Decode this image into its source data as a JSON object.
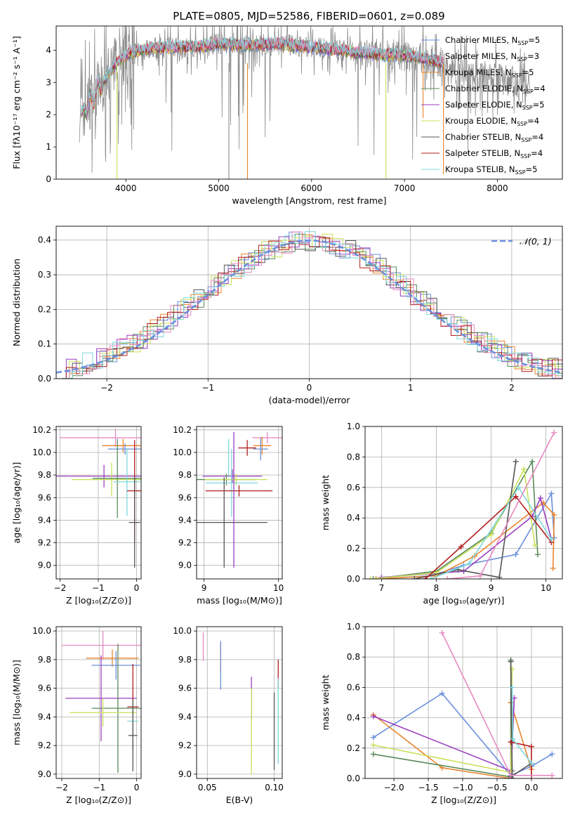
{
  "figure_title": "PLATE=0805, MJD=52586, FIBERID=0601, z=0.089",
  "colors": {
    "chabrier_miles": "#6a8fdc",
    "salpeter_miles": "#8c8c8c",
    "kroupa_miles": "#e8852e",
    "chabrier_elodie": "#5a8a5a",
    "salpeter_elodie": "#9b3fbf",
    "kroupa_elodie": "#c9e05a",
    "chabrier_stelib": "#555555",
    "salpeter_stelib": "#b01d1d",
    "kroupa_stelib": "#7fd8dc",
    "pink": "#e78ac3",
    "grid": "#b0b0b0"
  },
  "chart_data": [
    {
      "id": "spectrum",
      "type": "line",
      "xlabel": "wavelength [Angstrom, rest frame]",
      "ylabel": "Flux [fλ10⁻¹⁷ erg cm⁻² s⁻¹ A⁻¹]",
      "xlim": [
        3250,
        8700
      ],
      "ylim": [
        0,
        4.75
      ],
      "xticks": [
        4000,
        5000,
        6000,
        7000,
        8000
      ],
      "yticks": [
        0,
        1,
        2,
        3,
        4
      ],
      "grid": false,
      "legend_position": "top-right",
      "legend": [
        {
          "label": "Chabrier MILES, N_SSP=5",
          "text": "Chabrier MILES, N",
          "sub": "SSP",
          "tail": "=5",
          "color": "#6a8fdc"
        },
        {
          "label": "Salpeter MILES, N_SSP=3",
          "text": "Salpeter MILES, N",
          "sub": "SSP",
          "tail": "=3",
          "color": "#8c8c8c"
        },
        {
          "label": "Kroupa MILES, N_SSP=5",
          "text": "Kroupa MILES, N",
          "sub": "SSP",
          "tail": "=5",
          "color": "#e8852e"
        },
        {
          "label": "Chabrier ELODIE, N_SSP=4",
          "text": "Chabrier ELODIE, N",
          "sub": "SSP",
          "tail": "=4",
          "color": "#5a8a5a"
        },
        {
          "label": "Salpeter ELODIE, N_SSP=5",
          "text": "Salpeter ELODIE, N",
          "sub": "SSP",
          "tail": "=5",
          "color": "#9b3fbf"
        },
        {
          "label": "Kroupa ELODIE, N_SSP=4",
          "text": "Kroupa ELODIE, N",
          "sub": "SSP",
          "tail": "=4",
          "color": "#c9e05a"
        },
        {
          "label": "Chabrier STELIB, N_SSP=4",
          "text": "Chabrier STELIB, N",
          "sub": "SSP",
          "tail": "=4",
          "color": "#555555"
        },
        {
          "label": "Salpeter STELIB, N_SSP=4",
          "text": "Salpeter STELIB, N",
          "sub": "SSP",
          "tail": "=4",
          "color": "#b01d1d"
        },
        {
          "label": "Kroupa STELIB, N_SSP=5",
          "text": "Kroupa STELIB, N",
          "sub": "SSP",
          "tail": "=5",
          "color": "#7fd8dc"
        }
      ],
      "continuum_x": [
        3500,
        3600,
        3700,
        3800,
        3900,
        4000,
        4200,
        4500,
        4800,
        5000,
        5300,
        5600,
        6000,
        6300,
        6600,
        6900,
        7100,
        7300,
        7420
      ],
      "continuum_y": [
        2.1,
        2.3,
        2.8,
        3.2,
        3.6,
        3.85,
        4.05,
        4.1,
        4.1,
        4.2,
        4.15,
        4.2,
        4.1,
        4.0,
        3.9,
        3.85,
        3.8,
        3.7,
        3.6
      ],
      "data_drops": [
        {
          "x": 3905,
          "y": 0.0,
          "color": "#c9e05a"
        },
        {
          "x": 5110,
          "y": 0.0,
          "color": "#8c8c8c"
        },
        {
          "x": 5310,
          "y": 0.0,
          "color": "#e8852e"
        },
        {
          "x": 6800,
          "y": 0.0,
          "color": "#c9e05a"
        },
        {
          "x": 7200,
          "y": 1.9,
          "color": "#e8852e"
        },
        {
          "x": 7420,
          "y": 0.15,
          "color": "#e8852e"
        }
      ]
    },
    {
      "id": "residual_hist",
      "type": "line",
      "xlabel": "(data-model)/error",
      "ylabel": "Normed distribution",
      "xlim": [
        -2.5,
        2.5
      ],
      "ylim": [
        0,
        0.44
      ],
      "xticks": [
        -2,
        -1,
        0,
        1,
        2
      ],
      "yticks": [
        0.0,
        0.1,
        0.2,
        0.3,
        0.4
      ],
      "grid": true,
      "legend_position": "top-right",
      "normal_label": "𝒩(0, 1)",
      "bin_width": 0.1
    },
    {
      "id": "age_vs_Z",
      "type": "scatter",
      "xlabel": "Z [log₁₀(Z/Z⊙)]",
      "ylabel": "age  [log₁₀(age/yr)]",
      "xlim": [
        -2.1,
        0.12
      ],
      "ylim": [
        8.88,
        10.23
      ],
      "xticks": [
        -2,
        -1,
        0
      ],
      "yticks": [
        9.0,
        9.2,
        9.4,
        9.6,
        9.8,
        10.0,
        10.2
      ],
      "grid": true,
      "points": [
        {
          "x": -0.55,
          "xerr": 1.45,
          "y": 10.13,
          "yerr": 0.08,
          "color": "#e78ac3"
        },
        {
          "x": -0.35,
          "xerr": 0.55,
          "y": 10.06,
          "yerr": 0.06,
          "color": "#e8852e"
        },
        {
          "x": -0.3,
          "xerr": 0.45,
          "y": 10.03,
          "yerr": 0.05,
          "color": "#6a8fdc"
        },
        {
          "x": -0.85,
          "xerr": 1.35,
          "y": 9.79,
          "yerr": 0.1,
          "color": "#9b3fbf"
        },
        {
          "x": -0.65,
          "xerr": 1.05,
          "y": 9.76,
          "yerr": 0.15,
          "color": "#c9e05a"
        },
        {
          "x": -0.5,
          "xerr": 0.65,
          "y": 9.77,
          "yerr": 0.35,
          "color": "#5a8a5a"
        },
        {
          "x": -0.25,
          "xerr": 0.35,
          "y": 9.74,
          "yerr": 0.3,
          "color": "#7fd8dc"
        },
        {
          "x": -0.05,
          "xerr": 0.2,
          "y": 9.66,
          "yerr": 0.45,
          "color": "#b01d1d"
        },
        {
          "x": -0.05,
          "xerr": 0.15,
          "y": 9.38,
          "yerr": 0.4,
          "color": "#555555"
        }
      ]
    },
    {
      "id": "age_vs_mass",
      "type": "scatter",
      "xlabel": "mass [log₁₀(M/M⊙)]",
      "ylabel": "",
      "xlim": [
        8.9,
        10.05
      ],
      "ylim": [
        8.88,
        10.23
      ],
      "xticks": [
        9,
        10
      ],
      "yticks": [
        9.0,
        9.2,
        9.4,
        9.6,
        9.8,
        10.0,
        10.2
      ],
      "grid": true,
      "points": [
        {
          "x": 9.85,
          "xerr": 0.2,
          "y": 10.13,
          "yerr": 0.05,
          "color": "#e78ac3"
        },
        {
          "x": 9.78,
          "xerr": 0.12,
          "y": 10.06,
          "yerr": 0.08,
          "color": "#e8852e"
        },
        {
          "x": 9.76,
          "xerr": 0.1,
          "y": 10.03,
          "yerr": 0.1,
          "color": "#6a8fdc"
        },
        {
          "x": 9.58,
          "xerr": 0.12,
          "y": 10.04,
          "yerr": 0.07,
          "color": "#b01d1d"
        },
        {
          "x": 9.38,
          "xerr": 0.4,
          "y": 9.79,
          "yerr": 0.06,
          "color": "#9b3fbf"
        },
        {
          "x": 9.3,
          "xerr": 0.4,
          "y": 9.76,
          "yerr": 0.05,
          "color": "#5a8a5a"
        },
        {
          "x": 9.43,
          "xerr": 0.42,
          "y": 9.76,
          "yerr": 0.05,
          "color": "#c9e05a"
        },
        {
          "x": 9.37,
          "xerr": 0.35,
          "y": 9.73,
          "yerr": 0.3,
          "color": "#7fd8dc"
        },
        {
          "x": 9.47,
          "xerr": 0.45,
          "y": 9.66,
          "yerr": 0.05,
          "color": "#b01d1d"
        },
        {
          "x": 9.27,
          "xerr": 0.58,
          "y": 9.38,
          "yerr": 0.4,
          "color": "#555555"
        },
        {
          "x": 9.4,
          "xerr": 0.0,
          "y": 9.58,
          "yerr": 0.6,
          "color": "#9b3fbf"
        },
        {
          "x": 9.33,
          "xerr": 0.0,
          "y": 9.95,
          "yerr": 0.17,
          "color": "#7fd8dc"
        }
      ]
    },
    {
      "id": "mass_weight_vs_age",
      "type": "line",
      "xlabel": "age  [log₁₀(age/yr)]",
      "ylabel": "mass weight",
      "xlim": [
        6.7,
        10.3
      ],
      "ylim": [
        0,
        1.0
      ],
      "xticks": [
        7,
        8,
        9,
        10
      ],
      "yticks": [
        0.0,
        0.2,
        0.4,
        0.6,
        0.8,
        1.0
      ],
      "grid": true,
      "series": [
        {
          "color": "#6a8fdc",
          "x": [
            6.9,
            7.9,
            8.5,
            9.45,
            10.1,
            10.15
          ],
          "y": [
            0.0,
            0.02,
            0.09,
            0.16,
            0.56,
            0.27
          ]
        },
        {
          "color": "#e8852e",
          "x": [
            6.9,
            8.0,
            8.7,
            9.95,
            10.15,
            10.13
          ],
          "y": [
            0.0,
            0.02,
            0.15,
            0.5,
            0.42,
            0.07
          ]
        },
        {
          "color": "#5a8a5a",
          "x": [
            6.85,
            8.0,
            9.0,
            9.75,
            9.85
          ],
          "y": [
            0.0,
            0.05,
            0.3,
            0.77,
            0.16
          ]
        },
        {
          "color": "#9b3fbf",
          "x": [
            7.0,
            8.5,
            9.75,
            9.9,
            10.1
          ],
          "y": [
            0.01,
            0.05,
            0.41,
            0.53,
            0.26
          ]
        },
        {
          "color": "#c9e05a",
          "x": [
            6.8,
            8.0,
            9.0,
            9.6,
            9.8
          ],
          "y": [
            0.0,
            0.04,
            0.29,
            0.72,
            0.22
          ]
        },
        {
          "color": "#555555",
          "x": [
            7.6,
            8.4,
            9.15,
            9.45
          ],
          "y": [
            0.0,
            0.06,
            0.01,
            0.77
          ]
        },
        {
          "color": "#b01d1d",
          "x": [
            7.8,
            8.45,
            9.45,
            10.1
          ],
          "y": [
            0.0,
            0.21,
            0.54,
            0.24
          ]
        },
        {
          "color": "#7fd8dc",
          "x": [
            7.9,
            8.6,
            9.5,
            10.1
          ],
          "y": [
            0.0,
            0.1,
            0.6,
            0.26
          ]
        },
        {
          "color": "#e78ac3",
          "x": [
            8.2,
            8.8,
            10.15
          ],
          "y": [
            0.0,
            0.02,
            0.96
          ]
        }
      ]
    },
    {
      "id": "mass_vs_Z",
      "type": "scatter",
      "xlabel": "Z [log₁₀(Z/Z⊙)]",
      "ylabel": "mass [log₁₀(M/M⊙)]",
      "xlim": [
        -2.15,
        0.12
      ],
      "ylim": [
        8.97,
        10.03
      ],
      "xticks": [
        -2,
        -1,
        0
      ],
      "yticks": [
        9.0,
        9.2,
        9.4,
        9.6,
        9.8,
        10.0
      ],
      "grid": true,
      "points": [
        {
          "x": -0.9,
          "xerr": 1.1,
          "y": 9.9,
          "yerr": 0.1,
          "color": "#e78ac3"
        },
        {
          "x": -0.65,
          "xerr": 0.7,
          "y": 9.81,
          "yerr": 0.06,
          "color": "#e8852e"
        },
        {
          "x": -0.55,
          "xerr": 0.65,
          "y": 9.76,
          "yerr": 0.1,
          "color": "#6a8fdc"
        },
        {
          "x": -0.95,
          "xerr": 0.95,
          "y": 9.53,
          "yerr": 0.3,
          "color": "#9b3fbf"
        },
        {
          "x": -0.5,
          "xerr": 0.7,
          "y": 9.46,
          "yerr": 0.45,
          "color": "#5a8a5a"
        },
        {
          "x": -0.9,
          "xerr": 0.9,
          "y": 9.43,
          "yerr": 0.1,
          "color": "#c9e05a"
        },
        {
          "x": -0.1,
          "xerr": 0.15,
          "y": 9.47,
          "yerr": 0.3,
          "color": "#b01d1d"
        },
        {
          "x": -0.1,
          "xerr": 0.15,
          "y": 9.37,
          "yerr": 0.15,
          "color": "#7fd8dc"
        },
        {
          "x": -0.1,
          "xerr": 0.12,
          "y": 9.27,
          "yerr": 0.25,
          "color": "#555555"
        }
      ]
    },
    {
      "id": "mass_vs_EBV",
      "type": "scatter",
      "xlabel": "E(B-V)",
      "ylabel": "",
      "xlim": [
        0.042,
        0.106
      ],
      "ylim": [
        8.97,
        10.03
      ],
      "xticks": [
        0.05,
        0.1
      ],
      "yticks": [
        9.0,
        9.2,
        9.4,
        9.6,
        9.8,
        10.0
      ],
      "grid": true,
      "points": [
        {
          "x": 0.047,
          "xerr": 0.0,
          "y": 9.89,
          "yerr": 0.1,
          "color": "#e78ac3"
        },
        {
          "x": 0.06,
          "xerr": 0.0,
          "y": 9.81,
          "yerr": 0.1,
          "color": "#e8852e"
        },
        {
          "x": 0.06,
          "xerr": 0.0,
          "y": 9.76,
          "yerr": 0.17,
          "color": "#6a8fdc"
        },
        {
          "x": 0.083,
          "xerr": 0.0,
          "y": 9.53,
          "yerr": 0.15,
          "color": "#9b3fbf"
        },
        {
          "x": 0.083,
          "xerr": 0.0,
          "y": 9.3,
          "yerr": 0.3,
          "color": "#c9e05a"
        },
        {
          "x": 0.1,
          "xerr": 0.0,
          "y": 9.3,
          "yerr": 0.27,
          "color": "#555555"
        },
        {
          "x": 0.103,
          "xerr": 0.0,
          "y": 9.7,
          "yerr": 0.1,
          "color": "#b01d1d"
        },
        {
          "x": 0.103,
          "xerr": 0.0,
          "y": 9.37,
          "yerr": 0.3,
          "color": "#7fd8dc"
        }
      ]
    },
    {
      "id": "mass_weight_vs_Z",
      "type": "line",
      "xlabel": "Z [log₁₀(Z/Z⊙)]",
      "ylabel": "mass weight",
      "xlim": [
        -2.42,
        0.45
      ],
      "ylim": [
        0,
        1.0
      ],
      "xticks": [
        -2.0,
        -1.5,
        -1.0,
        -0.5,
        0.0
      ],
      "yticks": [
        0.0,
        0.2,
        0.4,
        0.6,
        0.8,
        1.0
      ],
      "grid": true,
      "series": [
        {
          "color": "#6a8fdc",
          "x": [
            -2.3,
            -1.3,
            -0.3,
            0.0,
            0.3
          ],
          "y": [
            0.27,
            0.56,
            0.02,
            0.08,
            0.16
          ]
        },
        {
          "color": "#e8852e",
          "x": [
            -2.3,
            -1.3,
            -0.3,
            -0.3,
            0.0
          ],
          "y": [
            0.42,
            0.07,
            0.0,
            0.5,
            0.06
          ]
        },
        {
          "color": "#5a8a5a",
          "x": [
            -2.3,
            -0.3,
            -0.3,
            -0.28
          ],
          "y": [
            0.16,
            0.01,
            0.78,
            0.05
          ]
        },
        {
          "color": "#9b3fbf",
          "x": [
            -2.3,
            -0.3,
            -0.25,
            -0.3
          ],
          "y": [
            0.41,
            0.05,
            0.53,
            0.01
          ]
        },
        {
          "color": "#c9e05a",
          "x": [
            -2.3,
            -0.3,
            -0.28
          ],
          "y": [
            0.22,
            0.04,
            0.72
          ]
        },
        {
          "color": "#555555",
          "x": [
            -0.3,
            -0.28,
            -0.3,
            0.0
          ],
          "y": [
            0.77,
            0.0,
            0.01,
            0.1
          ]
        },
        {
          "color": "#b01d1d",
          "x": [
            -0.3,
            0.0,
            0.0
          ],
          "y": [
            0.24,
            0.21,
            0.02
          ]
        },
        {
          "color": "#7fd8dc",
          "x": [
            -0.28,
            -0.27,
            0.0
          ],
          "y": [
            0.6,
            0.26,
            0.1
          ]
        },
        {
          "color": "#e78ac3",
          "x": [
            -1.3,
            -0.3,
            0.3
          ],
          "y": [
            0.96,
            0.02,
            0.02
          ]
        }
      ]
    }
  ]
}
